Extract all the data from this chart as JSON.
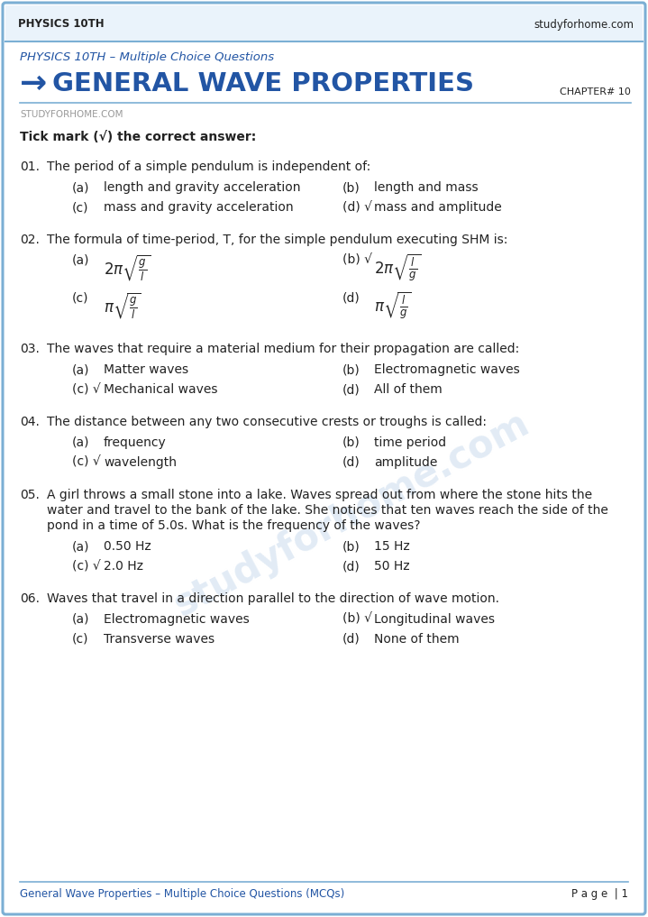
{
  "header_left": "PHYSICS 10TH",
  "header_right": "studyforhome.com",
  "subtitle": "PHYSICS 10TH – Multiple Choice Questions",
  "chapter_num": "CHAPTER# 10",
  "source_line": "STUDYFORHOME.COM",
  "instruction": "Tick mark (√) the correct answer:",
  "footer_left": "General Wave Properties – Multiple Choice Questions (MCQs)",
  "footer_right": "P a g e  | 1",
  "bg_color": "#ffffff",
  "border_color": "#7bafd4",
  "header_bg_color": "#eaf3fb",
  "header_line_color": "#7bafd4",
  "title_color": "#2255a4",
  "subtitle_color": "#2255a4",
  "text_color": "#222222",
  "source_color": "#999999",
  "footer_color": "#2255a4",
  "watermark_color": "#c5d8ec",
  "questions": [
    {
      "num": "01.",
      "text": "The period of a simple pendulum is independent of:",
      "math": false,
      "options": [
        {
          "label": "(a)",
          "text": "length and gravity acceleration",
          "correct": false
        },
        {
          "label": "(b)",
          "text": "length and mass",
          "correct": false
        },
        {
          "label": "(c)",
          "text": "mass and gravity acceleration",
          "correct": false
        },
        {
          "label": "(d)",
          "text": "mass and amplitude",
          "correct": true
        }
      ]
    },
    {
      "num": "02.",
      "text": "The formula of time-period, T, for the simple pendulum executing SHM is:",
      "math": true,
      "options": [
        {
          "label": "(a)",
          "math_expr": "2\\pi\\sqrt{\\frac{g}{l}}",
          "correct": false
        },
        {
          "label": "(b)",
          "math_expr": "2\\pi\\sqrt{\\frac{l}{g}}",
          "correct": true
        },
        {
          "label": "(c)",
          "math_expr": "\\pi\\sqrt{\\frac{g}{l}}",
          "correct": false
        },
        {
          "label": "(d)",
          "math_expr": "\\pi\\sqrt{\\frac{l}{g}}",
          "correct": false
        }
      ]
    },
    {
      "num": "03.",
      "text": "The waves that require a material medium for their propagation are called:",
      "math": false,
      "options": [
        {
          "label": "(a)",
          "text": "Matter waves",
          "correct": false
        },
        {
          "label": "(b)",
          "text": "Electromagnetic waves",
          "correct": false
        },
        {
          "label": "(c)",
          "text": "Mechanical waves",
          "correct": true
        },
        {
          "label": "(d)",
          "text": "All of them",
          "correct": false
        }
      ]
    },
    {
      "num": "04.",
      "text": "The distance between any two consecutive crests or troughs is called:",
      "math": false,
      "options": [
        {
          "label": "(a)",
          "text": "frequency",
          "correct": false
        },
        {
          "label": "(b)",
          "text": "time period",
          "correct": false
        },
        {
          "label": "(c)",
          "text": "wavelength",
          "correct": true
        },
        {
          "label": "(d)",
          "text": "amplitude",
          "correct": false
        }
      ]
    },
    {
      "num": "05.",
      "text": "A girl throws a small stone into a lake. Waves spread out from where the stone hits the\nwater and travel to the bank of the lake. She notices that ten waves reach the side of the\npond in a time of 5.0s. What is the frequency of the waves?",
      "math": false,
      "options": [
        {
          "label": "(a)",
          "text": "0.50 Hz",
          "correct": false
        },
        {
          "label": "(b)",
          "text": "15 Hz",
          "correct": false
        },
        {
          "label": "(c)",
          "text": "2.0 Hz",
          "correct": true
        },
        {
          "label": "(d)",
          "text": "50 Hz",
          "correct": false
        }
      ]
    },
    {
      "num": "06.",
      "text": "Waves that travel in a direction parallel to the direction of wave motion.",
      "math": false,
      "options": [
        {
          "label": "(a)",
          "text": "Electromagnetic waves",
          "correct": false
        },
        {
          "label": "(b)",
          "text": "Longitudinal waves",
          "correct": true
        },
        {
          "label": "(c)",
          "text": "Transverse waves",
          "correct": false
        },
        {
          "label": "(d)",
          "text": "None of them",
          "correct": false
        }
      ]
    }
  ]
}
